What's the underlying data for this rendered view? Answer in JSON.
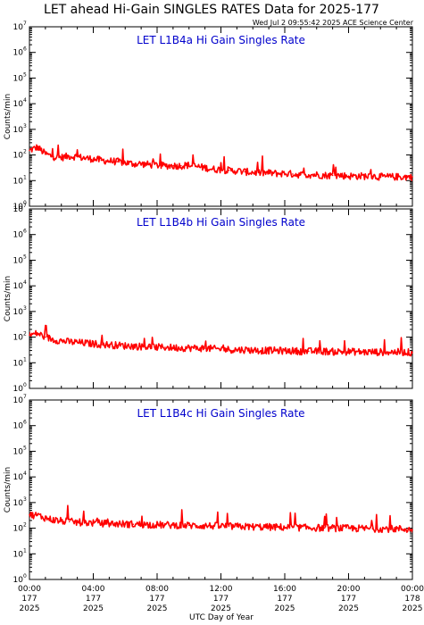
{
  "title": "LET ahead Hi-Gain SINGLES RATES Data for 2025-177",
  "timestamp": "Wed Jul  2 09:55:42 2025 ACE Science Center",
  "xlabel": "UTC Day of Year",
  "colors": {
    "series": "#ff0000",
    "panel_title": "#0000cc",
    "axes": "#000000"
  },
  "x_ticks": [
    {
      "time": "00:00",
      "doy": "177",
      "year": "2025"
    },
    {
      "time": "04:00",
      "doy": "177",
      "year": "2025"
    },
    {
      "time": "08:00",
      "doy": "177",
      "year": "2025"
    },
    {
      "time": "12:00",
      "doy": "177",
      "year": "2025"
    },
    {
      "time": "16:00",
      "doy": "177",
      "year": "2025"
    },
    {
      "time": "20:00",
      "doy": "177",
      "year": "2025"
    },
    {
      "time": "00:00",
      "doy": "178",
      "year": "2025"
    }
  ],
  "y_tick_exponents": [
    0,
    1,
    2,
    3,
    4,
    5,
    6,
    7
  ],
  "chart_data": [
    {
      "type": "line",
      "title": "LET L1B4a Hi Gain Singles Rate",
      "ylabel": "Counts/min",
      "yscale": "log",
      "ylim": [
        1,
        10000000
      ],
      "xlabel": "UTC Day of Year",
      "xlim": [
        "2025-177 00:00",
        "2025-178 00:00"
      ],
      "grid": false,
      "series": [
        {
          "x": [
            "00:00",
            "00:30",
            "01:00",
            "01:30",
            "02:00",
            "02:30",
            "03:00",
            "03:30",
            "04:00",
            "04:30",
            "05:00",
            "05:30",
            "06:00",
            "06:30",
            "07:00",
            "07:30",
            "08:00",
            "08:30",
            "09:00",
            "09:30",
            "10:00",
            "10:30",
            "11:00",
            "11:30",
            "12:00",
            "12:30",
            "13:00",
            "13:30",
            "14:00",
            "14:30",
            "15:00",
            "15:30",
            "16:00",
            "16:30",
            "17:00",
            "17:30",
            "18:00",
            "18:30",
            "19:00",
            "19:30",
            "20:00",
            "20:30",
            "21:00",
            "21:30",
            "22:00",
            "22:30",
            "23:00",
            "23:30",
            "24:00"
          ],
          "values": [
            150,
            200,
            110,
            85,
            80,
            90,
            85,
            75,
            70,
            62,
            58,
            55,
            50,
            45,
            45,
            42,
            40,
            38,
            38,
            38,
            40,
            35,
            32,
            28,
            27,
            25,
            24,
            22,
            21,
            20,
            20,
            19,
            19,
            18,
            17,
            17,
            17,
            16,
            16,
            16,
            15,
            15,
            15,
            15,
            14,
            14,
            14,
            14,
            14
          ]
        }
      ]
    },
    {
      "type": "line",
      "title": "LET L1B4b Hi Gain Singles Rate",
      "ylabel": "Counts/min",
      "yscale": "log",
      "ylim": [
        1,
        10000000
      ],
      "xlabel": "UTC Day of Year",
      "xlim": [
        "2025-177 00:00",
        "2025-178 00:00"
      ],
      "grid": false,
      "series": [
        {
          "x": [
            "00:00",
            "00:30",
            "01:00",
            "01:30",
            "02:00",
            "02:30",
            "03:00",
            "03:30",
            "04:00",
            "04:30",
            "05:00",
            "05:30",
            "06:00",
            "06:30",
            "07:00",
            "07:30",
            "08:00",
            "08:30",
            "09:00",
            "09:30",
            "10:00",
            "10:30",
            "11:00",
            "11:30",
            "12:00",
            "12:30",
            "13:00",
            "13:30",
            "14:00",
            "14:30",
            "15:00",
            "15:30",
            "16:00",
            "16:30",
            "17:00",
            "17:30",
            "18:00",
            "18:30",
            "19:00",
            "19:30",
            "20:00",
            "20:30",
            "21:00",
            "21:30",
            "22:00",
            "22:30",
            "23:00",
            "23:30",
            "24:00"
          ],
          "values": [
            120,
            140,
            100,
            80,
            72,
            65,
            62,
            58,
            55,
            52,
            50,
            48,
            46,
            45,
            43,
            42,
            40,
            40,
            39,
            38,
            38,
            37,
            37,
            35,
            34,
            33,
            32,
            32,
            31,
            30,
            30,
            30,
            29,
            29,
            28,
            28,
            28,
            28,
            27,
            27,
            27,
            27,
            26,
            26,
            26,
            26,
            26,
            26,
            25
          ]
        }
      ]
    },
    {
      "type": "line",
      "title": "LET L1B4c Hi Gain Singles Rate",
      "ylabel": "Counts/min",
      "yscale": "log",
      "ylim": [
        1,
        10000000
      ],
      "xlabel": "UTC Day of Year",
      "xlim": [
        "2025-177 00:00",
        "2025-178 00:00"
      ],
      "grid": false,
      "series": [
        {
          "x": [
            "00:00",
            "00:30",
            "01:00",
            "01:30",
            "02:00",
            "02:30",
            "03:00",
            "03:30",
            "04:00",
            "04:30",
            "05:00",
            "05:30",
            "06:00",
            "06:30",
            "07:00",
            "07:30",
            "08:00",
            "08:30",
            "09:00",
            "09:30",
            "10:00",
            "10:30",
            "11:00",
            "11:30",
            "12:00",
            "12:30",
            "13:00",
            "13:30",
            "14:00",
            "14:30",
            "15:00",
            "15:30",
            "16:00",
            "16:30",
            "17:00",
            "17:30",
            "18:00",
            "18:30",
            "19:00",
            "19:30",
            "20:00",
            "20:30",
            "21:00",
            "21:30",
            "22:00",
            "22:30",
            "23:00",
            "23:30",
            "24:00"
          ],
          "values": [
            330,
            320,
            250,
            210,
            190,
            180,
            170,
            165,
            160,
            155,
            150,
            148,
            145,
            142,
            140,
            138,
            135,
            133,
            132,
            130,
            128,
            126,
            125,
            122,
            120,
            118,
            116,
            115,
            113,
            112,
            110,
            110,
            108,
            107,
            105,
            104,
            103,
            102,
            101,
            100,
            99,
            98,
            97,
            96,
            95,
            95,
            94,
            93,
            85
          ]
        }
      ]
    }
  ]
}
